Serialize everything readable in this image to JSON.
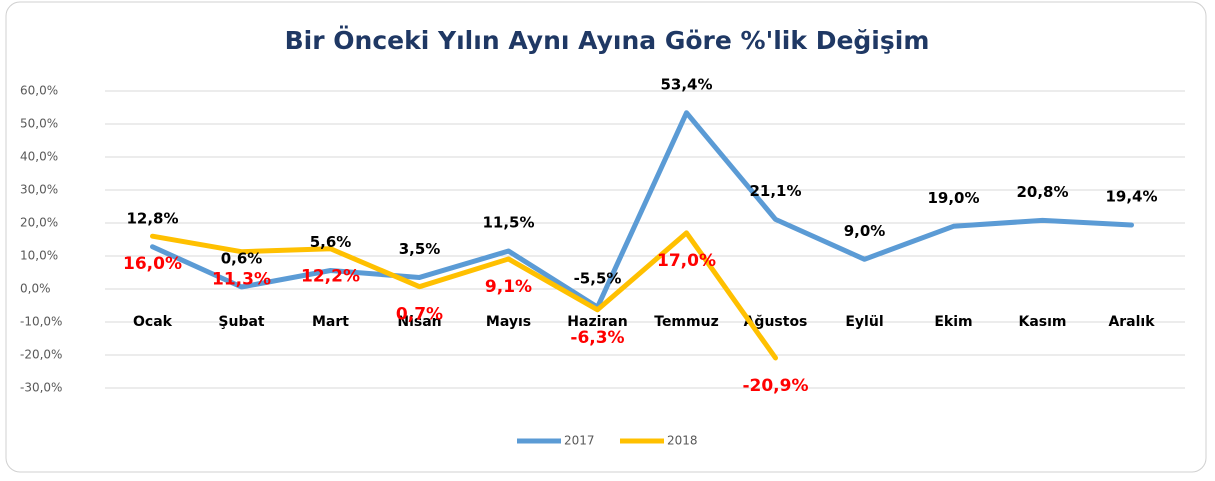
{
  "chart_data": {
    "type": "line",
    "title": "Bir Önceki Yılın Aynı Ayına Göre %'lik Değişim",
    "categories": [
      "Ocak",
      "Şubat",
      "Mart",
      "Nisan",
      "Mayıs",
      "Haziran",
      "Temmuz",
      "Ağustos",
      "Eylül",
      "Ekim",
      "Kasım",
      "Aralık"
    ],
    "series": [
      {
        "name": "2017",
        "color": "#5b9bd5",
        "values": [
          12.8,
          0.6,
          5.6,
          3.5,
          11.5,
          -5.5,
          53.4,
          21.1,
          9.0,
          19.0,
          20.8,
          19.4
        ],
        "value_labels": [
          "12,8%",
          "0,6%",
          "5,6%",
          "3,5%",
          "11,5%",
          "-5,5%",
          "53,4%",
          "21,1%",
          "9,0%",
          "19,0%",
          "20,8%",
          "19,4%"
        ]
      },
      {
        "name": "2018",
        "color": "#ffc000",
        "values": [
          16.0,
          11.3,
          12.2,
          0.7,
          9.1,
          -6.3,
          17.0,
          -20.9,
          null,
          null,
          null,
          null
        ],
        "value_labels": [
          "16,0%",
          "11,3%",
          "12,2%",
          "0,7%",
          "9,1%",
          "-6,3%",
          "17,0%",
          "-20,9%",
          null,
          null,
          null,
          null
        ]
      }
    ],
    "ylim": [
      -30,
      60
    ],
    "yticks": [
      {
        "value": -30,
        "label": "-30,0%"
      },
      {
        "value": -20,
        "label": "-20,0%"
      },
      {
        "value": -10,
        "label": "-10,0%"
      },
      {
        "value": 0,
        "label": "0,0%"
      },
      {
        "value": 10,
        "label": "10,0%"
      },
      {
        "value": 20,
        "label": "20,0%"
      },
      {
        "value": 30,
        "label": "30,0%"
      },
      {
        "value": 40,
        "label": "40,0%"
      },
      {
        "value": 50,
        "label": "50,0%"
      },
      {
        "value": 60,
        "label": "60,0%"
      }
    ],
    "grid": true,
    "legend": "bottom"
  }
}
